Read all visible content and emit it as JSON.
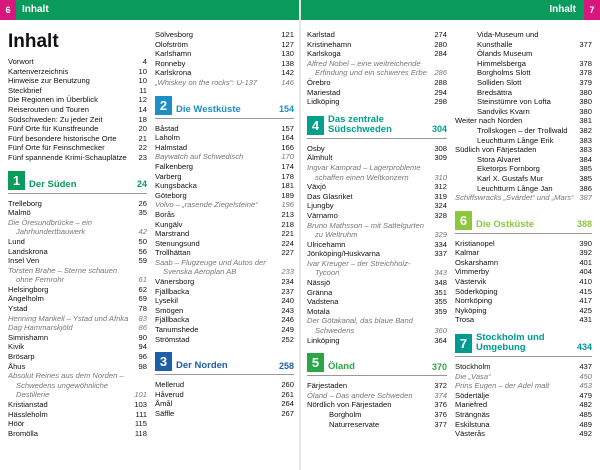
{
  "header": {
    "left": {
      "page_number": "6",
      "title": "Inhalt"
    },
    "right": {
      "page_number": "7",
      "title": "Inhalt"
    }
  },
  "title": "Inhalt",
  "columns": [
    [
      {
        "text": "Vorwort",
        "page": "4"
      },
      {
        "text": "Kartenverzeichnis",
        "page": "10"
      },
      {
        "text": "Hinweise zur Benutzung",
        "page": "10"
      },
      {
        "text": "Steckbrief",
        "page": "11"
      },
      {
        "text": "Die Regionen im Überblick",
        "page": "12"
      },
      {
        "text": "Reiserouten und Touren",
        "page": "14"
      },
      {
        "text": "Südschweden: Zu jeder Zeit",
        "page": "18"
      },
      {
        "text": "Fünf Orte für Kunstfreunde",
        "page": "20"
      },
      {
        "text": "Fünf besondere historische Orte",
        "page": "21"
      },
      {
        "text": "Fünf Orte für Feinschmecker",
        "page": "22"
      },
      {
        "text": "Fünf spannende Krimi-Schauplätze",
        "page": "23"
      },
      {
        "section": "1",
        "text": "Der Süden",
        "page": "24",
        "color": "#0a9a5c"
      },
      {
        "text": "Trelleborg",
        "page": "26"
      },
      {
        "text": "Malmö",
        "page": "35"
      },
      {
        "text": "Die Öresundbrücke – ein Jahrhundertbauwerk",
        "page": "42",
        "style": "italic"
      },
      {
        "text": "Lund",
        "page": "50"
      },
      {
        "text": "Landskrona",
        "page": "56"
      },
      {
        "text": "Insel Ven",
        "page": "59"
      },
      {
        "text": "Torsten Brahe – Sterne schauen ohne Fernrohr",
        "page": "61",
        "style": "italic"
      },
      {
        "text": "Helsingborg",
        "page": "62"
      },
      {
        "text": "Ängelholm",
        "page": "69"
      },
      {
        "text": "Ystad",
        "page": "78"
      },
      {
        "text": "Henning Mankell – Ystad und Afrika",
        "page": "83",
        "style": "italic"
      },
      {
        "text": "Dag Hammarskjöld",
        "page": "86",
        "style": "italic"
      },
      {
        "text": "Simrishamn",
        "page": "90"
      },
      {
        "text": "Kivik",
        "page": "94"
      },
      {
        "text": "Brösarp",
        "page": "96"
      },
      {
        "text": "Åhus",
        "page": "98"
      },
      {
        "text": "Absolut Reines aus dem Norden – Schwedens ungewöhnliche Destillerie",
        "page": "101",
        "style": "italic"
      },
      {
        "text": "Kristianstad",
        "page": "103"
      },
      {
        "text": "Hässleholm",
        "page": "111"
      },
      {
        "text": "Höör",
        "page": "115"
      },
      {
        "text": "Bromölla",
        "page": "118"
      }
    ],
    [
      {
        "text": "Sölvesborg",
        "page": "121"
      },
      {
        "text": "Olofström",
        "page": "127"
      },
      {
        "text": "Karlshamn",
        "page": "130"
      },
      {
        "text": "Ronneby",
        "page": "138"
      },
      {
        "text": "Karlskrona",
        "page": "142"
      },
      {
        "text": "„Whiskey on the rocks“: U-137",
        "page": "146",
        "style": "italic"
      },
      {
        "section": "2",
        "text": "Die Westküste",
        "page": "154",
        "color": "#1b8fc6"
      },
      {
        "text": "Båstad",
        "page": "157"
      },
      {
        "text": "Laholm",
        "page": "164"
      },
      {
        "text": "Halmstad",
        "page": "166"
      },
      {
        "text": "Baywatch auf Schwedisch",
        "page": "170",
        "style": "italic"
      },
      {
        "text": "Falkenberg",
        "page": "174"
      },
      {
        "text": "Varberg",
        "page": "178"
      },
      {
        "text": "Kungsbacka",
        "page": "181"
      },
      {
        "text": "Göteborg",
        "page": "189"
      },
      {
        "text": "Volvo – „rasende Ziegelsteine“",
        "page": "196",
        "style": "italic"
      },
      {
        "text": "Borås",
        "page": "213"
      },
      {
        "text": "Kungälv",
        "page": "218"
      },
      {
        "text": "Marstrand",
        "page": "221"
      },
      {
        "text": "Stenungsund",
        "page": "224"
      },
      {
        "text": "Trollhättan",
        "page": "227"
      },
      {
        "text": "Saab – Flugzeuge und Autos der Svenska Aeroplan AB",
        "page": "233",
        "style": "italic"
      },
      {
        "text": "Vänersborg",
        "page": "234"
      },
      {
        "text": "Fjällbacka",
        "page": "237"
      },
      {
        "text": "Lysekil",
        "page": "240"
      },
      {
        "text": "Smögen",
        "page": "243"
      },
      {
        "text": "Fjällbacka",
        "page": "246"
      },
      {
        "text": "Tanumshede",
        "page": "249"
      },
      {
        "text": "Strömstad",
        "page": "252"
      },
      {
        "section": "3",
        "text": "Der Norden",
        "page": "258",
        "color": "#1f5fa8"
      },
      {
        "text": "Mellerud",
        "page": "260"
      },
      {
        "text": "Håverud",
        "page": "261"
      },
      {
        "text": "Åmål",
        "page": "264"
      },
      {
        "text": "Säffle",
        "page": "267"
      }
    ],
    [
      {
        "text": "Karlstad",
        "page": "274"
      },
      {
        "text": "Kristinehamn",
        "page": "280"
      },
      {
        "text": "Karlskoga",
        "page": "284"
      },
      {
        "text": "Alfred Nobel – eine weitreichende Erfindung und ein schweres Erbe",
        "page": "286",
        "style": "italic"
      },
      {
        "text": "Örebro",
        "page": "288"
      },
      {
        "text": "Mariestad",
        "page": "294"
      },
      {
        "text": "Lidköping",
        "page": "298"
      },
      {
        "section": "4",
        "text": "Das zentrale Südschweden",
        "page": "304",
        "color": "#00a08c"
      },
      {
        "text": "Osby",
        "page": "308"
      },
      {
        "text": "Älmhult",
        "page": "309"
      },
      {
        "text": "Ingvar Kamprad – Lagerprobleme schaffen einen Weltkonzern",
        "page": "310",
        "style": "italic"
      },
      {
        "text": "Växjö",
        "page": "312"
      },
      {
        "text": "Das Glasriket",
        "page": "319"
      },
      {
        "text": "Ljungby",
        "page": "324"
      },
      {
        "text": "Värnamo",
        "page": "328"
      },
      {
        "text": "Bruno Mathsson – mit Sattelgurten zu Weltruhm",
        "page": "329",
        "style": "italic"
      },
      {
        "text": "Ulricehamn",
        "page": "334"
      },
      {
        "text": "Jönköping/Huskvarna",
        "page": "337"
      },
      {
        "text": "Ivar Kreuger – der Streichholz-Tycoon",
        "page": "343",
        "style": "italic"
      },
      {
        "text": "Nässjö",
        "page": "348"
      },
      {
        "text": "Gränna",
        "page": "351"
      },
      {
        "text": "Vadstena",
        "page": "355"
      },
      {
        "text": "Motala",
        "page": "359"
      },
      {
        "text": "Der Götakanal, das blaue Band Schwedens",
        "page": "360",
        "style": "italic"
      },
      {
        "text": "Linköping",
        "page": "364"
      },
      {
        "section": "5",
        "text": "Öland",
        "page": "370",
        "color": "#2aa646"
      },
      {
        "text": "Färjestaden",
        "page": "372"
      },
      {
        "text": "Öland – Das andere Schweden",
        "page": "374",
        "style": "italic"
      },
      {
        "text": "Nördlich von Färjestaden",
        "page": "376"
      },
      {
        "text": "Borgholm",
        "page": "376",
        "style": "indent"
      },
      {
        "text": "Naturreservate",
        "page": "377",
        "style": "indent"
      }
    ],
    [
      {
        "text": "Vida-Museum und Kunsthalle",
        "page": "377",
        "style": "indent"
      },
      {
        "text": "Ölands Museum Himmelsberga",
        "page": "378",
        "style": "indent"
      },
      {
        "text": "Borgholms Slott",
        "page": "378",
        "style": "indent"
      },
      {
        "text": "Solliden Slott",
        "page": "379",
        "style": "indent"
      },
      {
        "text": "Bredsättra",
        "page": "380",
        "style": "indent"
      },
      {
        "text": "Steinstümre von Lofta",
        "page": "380",
        "style": "indent"
      },
      {
        "text": "Sandviks Kvarn",
        "page": "380",
        "style": "indent"
      },
      {
        "text": "Weiter nach Norden",
        "page": "381"
      },
      {
        "text": "Trollskogen – der Trollwald",
        "page": "382",
        "style": "indent"
      },
      {
        "text": "Leuchtturm Långe Erik",
        "page": "383",
        "style": "indent"
      },
      {
        "text": "Südlich von Färjestaden",
        "page": "383"
      },
      {
        "text": "Stora Alvaret",
        "page": "384",
        "style": "indent"
      },
      {
        "text": "Eketorps Fornborg",
        "page": "385",
        "style": "indent"
      },
      {
        "text": "Karl X. Gustafs Mur",
        "page": "385",
        "style": "indent"
      },
      {
        "text": "Leuchtturm Långe Jan",
        "page": "386",
        "style": "indent"
      },
      {
        "text": "Schiffswracks „Svärdet“ und „Mars“",
        "page": "387",
        "style": "italic"
      },
      {
        "section": "6",
        "text": "Die Ostküste",
        "page": "388",
        "color": "#8dc63f"
      },
      {
        "text": "Kristianopel",
        "page": "390"
      },
      {
        "text": "Kalmar",
        "page": "392"
      },
      {
        "text": "Oskarshamn",
        "page": "401"
      },
      {
        "text": "Vimmerby",
        "page": "404"
      },
      {
        "text": "Västervik",
        "page": "410"
      },
      {
        "text": "Söderköping",
        "page": "415"
      },
      {
        "text": "Norrköping",
        "page": "417"
      },
      {
        "text": "Nyköping",
        "page": "425"
      },
      {
        "text": "Trosa",
        "page": "431"
      },
      {
        "section": "7",
        "text": "Stockholm und Umgebung",
        "page": "434",
        "color": "#009a90"
      },
      {
        "text": "Stockholm",
        "page": "437"
      },
      {
        "text": "Die „Vasa“",
        "page": "450",
        "style": "italic"
      },
      {
        "text": "Prins Eugen – der Adel malt",
        "page": "453",
        "style": "italic"
      },
      {
        "text": "Södertälje",
        "page": "479"
      },
      {
        "text": "Mariefred",
        "page": "482"
      },
      {
        "text": "Strängnäs",
        "page": "485"
      },
      {
        "text": "Eskilstuna",
        "page": "489"
      },
      {
        "text": "Västerås",
        "page": "492"
      }
    ]
  ]
}
